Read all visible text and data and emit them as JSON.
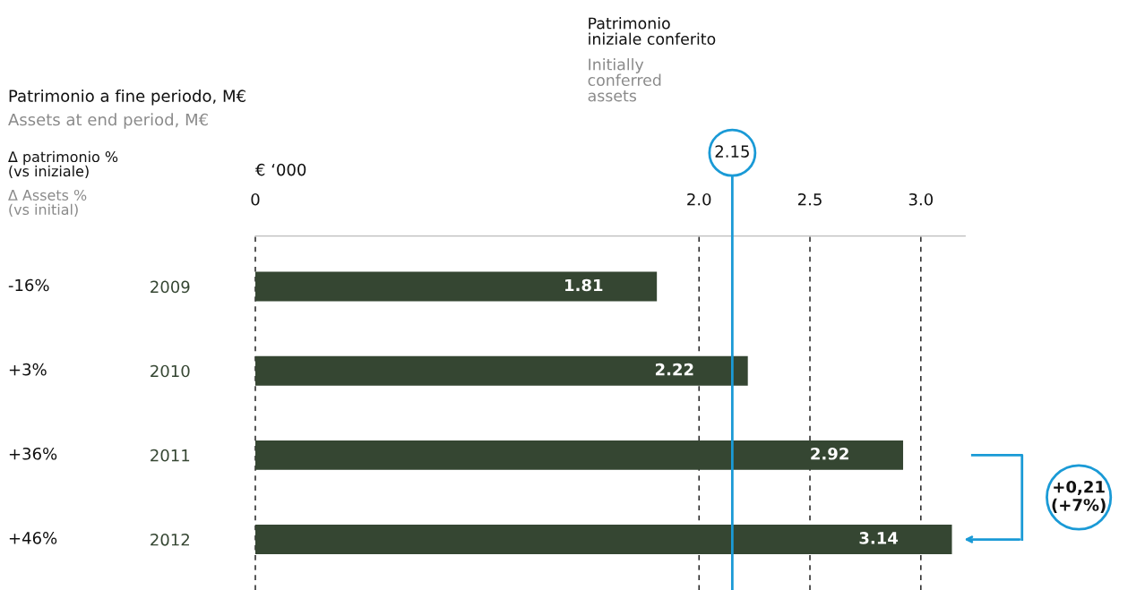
{
  "chart_data": {
    "type": "bar",
    "orientation": "horizontal",
    "title": "Patrimonio a fine periodo, M€",
    "subtitle": "Assets at end period, M€",
    "xlabel": "€ ‘000",
    "categories": [
      "2009",
      "2010",
      "2011",
      "2012"
    ],
    "values": [
      1.81,
      2.22,
      2.92,
      3.14
    ],
    "color": "#354632",
    "data_labels": true,
    "xlim": [
      0,
      3.2
    ],
    "xticks": [
      0,
      {
        "value": 2,
        "label": "2.0"
      },
      2.5,
      {
        "value": 3,
        "label": "3.0"
      }
    ],
    "grid": "x",
    "line_style": "dashed",
    "ref_lines": [
      {
        "axis": "x",
        "value": 2.15,
        "label": "2.15",
        "color": "#1a9ad6"
      }
    ],
    "annotations": [
      "Δ patrimonio %\n(vs iniziale)",
      "Δ Assets %\n(vs initial)",
      "Patrimonio\niniziale conferito",
      "Initially\nconferred\nassets",
      "+0,21\n(+7%)",
      "-16%",
      "+3%",
      "+36%",
      "+46%"
    ]
  }
}
